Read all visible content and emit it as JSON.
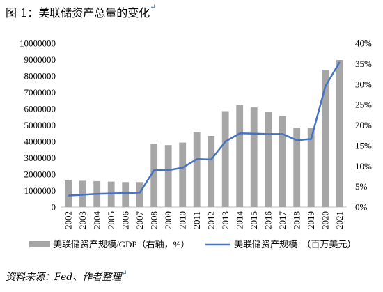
{
  "figure": {
    "title": "图 1：美联储资产总量的变化",
    "source": "资料来源：Fed、作者整理",
    "end_mark": "↵"
  },
  "chart_data": {
    "type": "bar",
    "categories": [
      "2002",
      "2003",
      "2004",
      "2005",
      "2006",
      "2007",
      "2008",
      "2009",
      "2010",
      "2011",
      "2012",
      "2013",
      "2014",
      "2015",
      "2016",
      "2017",
      "2018",
      "2019",
      "2020",
      "2021"
    ],
    "series": [
      {
        "name": "美联储资产规模/GDP（右轴，%）",
        "type": "bar",
        "axis": "left",
        "color": "#a6a6a6",
        "values": [
          1620000,
          1600000,
          1580000,
          1550000,
          1520000,
          1520000,
          3870000,
          3780000,
          3930000,
          4580000,
          4340000,
          5850000,
          6230000,
          6080000,
          5820000,
          5550000,
          4850000,
          4850000,
          8380000,
          8980000
        ]
      },
      {
        "name": "美联储资产规模　（百万美元）",
        "type": "line",
        "axis": "right",
        "color": "#4472c4",
        "values": [
          2.8,
          3.0,
          3.2,
          3.3,
          3.4,
          3.5,
          9.0,
          9.0,
          9.6,
          11.7,
          11.6,
          16.0,
          18.0,
          17.9,
          17.8,
          17.8,
          16.3,
          16.6,
          29.5,
          35.4
        ]
      }
    ],
    "y_left": {
      "ylim": [
        0,
        10000000
      ],
      "ticks": [
        "0",
        "1000000",
        "2000000",
        "3000000",
        "4000000",
        "5000000",
        "6000000",
        "7000000",
        "8000000",
        "9000000",
        "10000000"
      ]
    },
    "y_right": {
      "ylim": [
        0,
        40
      ],
      "ticks": [
        "0%",
        "5%",
        "10%",
        "15%",
        "20%",
        "25%",
        "30%",
        "35%",
        "40%"
      ]
    },
    "grid": false,
    "legend_position": "bottom"
  }
}
